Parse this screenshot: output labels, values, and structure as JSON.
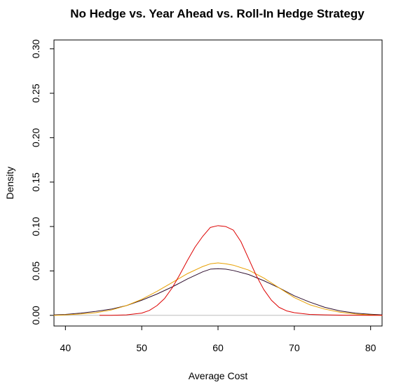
{
  "chart_data": {
    "type": "line",
    "title": "No Hedge vs. Year Ahead vs. Roll-In Hedge Strategy",
    "xlabel": "Average Cost",
    "ylabel": "Density",
    "xlim": [
      38.5,
      81.5
    ],
    "ylim": [
      -0.012,
      0.31
    ],
    "x_ticks": [
      40,
      50,
      60,
      70,
      80
    ],
    "x_tick_labels": [
      "40",
      "50",
      "60",
      "70",
      "80"
    ],
    "y_ticks": [
      0.0,
      0.05,
      0.1,
      0.15,
      0.2,
      0.25,
      0.3
    ],
    "y_tick_labels": [
      "0.00",
      "0.05",
      "0.10",
      "0.15",
      "0.20",
      "0.25",
      "0.30"
    ],
    "grid": false,
    "baseline": {
      "y": 0,
      "color": "#bebebe"
    },
    "series": [
      {
        "color": "#2f0f2f",
        "x": [
          38.5,
          40,
          42,
          44,
          46,
          48,
          50,
          52,
          54,
          56,
          58,
          59,
          60,
          61,
          62,
          64,
          66,
          68,
          70,
          72,
          74,
          76,
          78,
          80,
          81.5
        ],
        "y": [
          0.0005,
          0.001,
          0.0025,
          0.0045,
          0.007,
          0.011,
          0.017,
          0.024,
          0.032,
          0.041,
          0.049,
          0.052,
          0.0525,
          0.052,
          0.0505,
          0.046,
          0.039,
          0.031,
          0.022,
          0.015,
          0.009,
          0.005,
          0.0025,
          0.0012,
          0.0005
        ]
      },
      {
        "color": "#e8a000",
        "x": [
          38.5,
          40,
          42,
          44,
          46,
          48,
          50,
          52,
          54,
          56,
          58,
          59,
          60,
          61,
          62,
          64,
          66,
          68,
          70,
          72,
          74,
          76,
          78,
          80,
          81.5
        ],
        "y": [
          0.0,
          0.0005,
          0.0015,
          0.003,
          0.006,
          0.011,
          0.018,
          0.027,
          0.037,
          0.047,
          0.055,
          0.058,
          0.059,
          0.058,
          0.0565,
          0.051,
          0.042,
          0.031,
          0.02,
          0.012,
          0.007,
          0.0035,
          0.0015,
          0.0005,
          0.0
        ]
      },
      {
        "color": "#dd0000",
        "x": [
          44.5,
          46,
          48,
          50,
          51,
          52,
          53,
          54,
          55,
          56,
          57,
          58,
          59,
          60,
          61,
          62,
          63,
          64,
          65,
          66,
          67,
          68,
          69,
          70,
          72,
          74,
          76,
          78,
          80,
          81.5
        ],
        "y": [
          0.0,
          0.0,
          0.0005,
          0.0025,
          0.0055,
          0.011,
          0.019,
          0.031,
          0.046,
          0.062,
          0.077,
          0.089,
          0.099,
          0.101,
          0.1,
          0.096,
          0.083,
          0.064,
          0.045,
          0.029,
          0.017,
          0.009,
          0.005,
          0.003,
          0.001,
          0.0005,
          0.0002,
          0.0001,
          0.0,
          0.0
        ]
      }
    ]
  }
}
